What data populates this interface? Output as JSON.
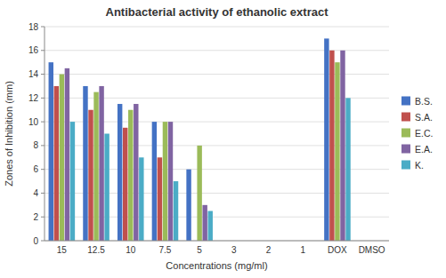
{
  "chart_data": {
    "type": "bar",
    "title": "Antibacterial activity of ethanolic extract",
    "xlabel": "Concentrations (mg/ml)",
    "ylabel": "Zones of Inhibition (mm)",
    "categories": [
      "15",
      "12.5",
      "10",
      "7.5",
      "5",
      "3",
      "2",
      "1",
      "DOX",
      "DMSO"
    ],
    "series": [
      {
        "name": "B.S.",
        "color": "#4472C4",
        "values": [
          15,
          13,
          11.5,
          10,
          6,
          0,
          0,
          0,
          17,
          0
        ]
      },
      {
        "name": "S.A.",
        "color": "#C0504D",
        "values": [
          13,
          11,
          9.5,
          7,
          0,
          0,
          0,
          0,
          16,
          0
        ]
      },
      {
        "name": "E.C.",
        "color": "#9BBB59",
        "values": [
          14,
          12.5,
          11,
          10,
          8,
          0,
          0,
          0,
          15,
          0
        ]
      },
      {
        "name": "E.A.",
        "color": "#8064A2",
        "values": [
          14.5,
          13,
          11.5,
          10,
          3,
          0,
          0,
          0,
          16,
          0
        ]
      },
      {
        "name": "K.",
        "color": "#4BACC6",
        "values": [
          10,
          9,
          7,
          5,
          2.5,
          0,
          0,
          0,
          12,
          0
        ]
      }
    ],
    "ylim": [
      0,
      18
    ],
    "yticks": [
      0,
      2,
      4,
      6,
      8,
      10,
      12,
      14,
      16,
      18
    ],
    "grid": true,
    "legend": "right"
  }
}
